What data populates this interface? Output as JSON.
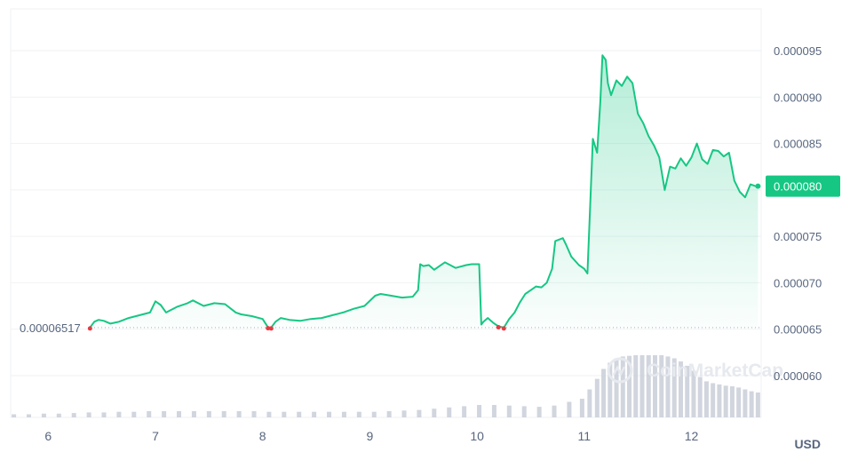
{
  "chart_data": {
    "type": "line",
    "currency": "USD",
    "accent_color": "#16c784",
    "down_color": "#ea3943",
    "volume_color": "#c5cad6",
    "watermark": "CoinMarketCap",
    "baseline_label": "0.00006517",
    "baseline_value": 6.517e-05,
    "current_label": "0.000080",
    "current_value": 8.04e-05,
    "ylim": [
      5.55e-05,
      9.95e-05
    ],
    "y_ticks": [
      "0.000095",
      "0.000090",
      "0.000085",
      "0.000080",
      "0.000075",
      "0.000070",
      "0.000065",
      "0.000060"
    ],
    "y_tick_values": [
      9.5e-05,
      9e-05,
      8.5e-05,
      8e-05,
      7.5e-05,
      7e-05,
      6.5e-05,
      6e-05
    ],
    "x_ticks": [
      "6",
      "7",
      "8",
      "9",
      "10",
      "11",
      "12"
    ],
    "x_tick_values": [
      6,
      7,
      8,
      9,
      10,
      11,
      12
    ],
    "xlim": [
      5.65,
      12.65
    ],
    "grid": true,
    "series": [
      {
        "type": "line",
        "x": [
          6.39,
          6.43,
          6.47,
          6.52,
          6.58,
          6.66,
          6.75,
          6.85,
          6.95,
          7.0,
          7.05,
          7.1,
          7.2,
          7.3,
          7.35,
          7.45,
          7.55,
          7.65,
          7.75,
          7.8,
          7.9,
          8.0,
          8.05,
          8.08,
          8.12,
          8.17,
          8.25,
          8.35,
          8.45,
          8.55,
          8.65,
          8.75,
          8.85,
          8.95,
          9.05,
          9.1,
          9.2,
          9.3,
          9.4,
          9.45,
          9.47,
          9.5,
          9.55,
          9.6,
          9.65,
          9.7,
          9.8,
          9.9,
          9.95,
          10.02,
          10.04,
          10.06,
          10.1,
          10.15,
          10.2,
          10.25,
          10.3,
          10.35,
          10.4,
          10.45,
          10.5,
          10.55,
          10.6,
          10.65,
          10.7,
          10.73,
          10.8,
          10.83,
          10.88,
          10.95,
          11.0,
          11.03,
          11.08,
          11.12,
          11.15,
          11.17,
          11.2,
          11.22,
          11.25,
          11.3,
          11.35,
          11.4,
          11.45,
          11.5,
          11.55,
          11.6,
          11.65,
          11.7,
          11.75,
          11.8,
          11.85,
          11.9,
          11.95,
          12.0,
          12.05,
          12.1,
          12.15,
          12.2,
          12.25,
          12.3,
          12.35,
          12.4,
          12.45,
          12.5,
          12.55,
          12.6,
          12.62
        ],
        "values": [
          6.517e-05,
          6.58e-05,
          6.6e-05,
          6.59e-05,
          6.56e-05,
          6.58e-05,
          6.62e-05,
          6.65e-05,
          6.68e-05,
          6.8e-05,
          6.76e-05,
          6.68e-05,
          6.74e-05,
          6.78e-05,
          6.81e-05,
          6.75e-05,
          6.78e-05,
          6.77e-05,
          6.68e-05,
          6.66e-05,
          6.64e-05,
          6.61e-05,
          6.52e-05,
          6.517e-05,
          6.58e-05,
          6.62e-05,
          6.6e-05,
          6.59e-05,
          6.61e-05,
          6.62e-05,
          6.65e-05,
          6.68e-05,
          6.72e-05,
          6.75e-05,
          6.86e-05,
          6.88e-05,
          6.86e-05,
          6.84e-05,
          6.85e-05,
          6.92e-05,
          7.2e-05,
          7.18e-05,
          7.19e-05,
          7.14e-05,
          7.18e-05,
          7.22e-05,
          7.16e-05,
          7.19e-05,
          7.2e-05,
          7.2e-05,
          6.55e-05,
          6.58e-05,
          6.62e-05,
          6.57e-05,
          6.53e-05,
          6.517e-05,
          6.61e-05,
          6.68e-05,
          6.79e-05,
          6.88e-05,
          6.92e-05,
          6.96e-05,
          6.95e-05,
          7e-05,
          7.15e-05,
          7.45e-05,
          7.48e-05,
          7.41e-05,
          7.28e-05,
          7.19e-05,
          7.15e-05,
          7.1e-05,
          8.55e-05,
          8.4e-05,
          8.95e-05,
          9.45e-05,
          9.4e-05,
          9.15e-05,
          9.02e-05,
          9.18e-05,
          9.12e-05,
          9.22e-05,
          9.15e-05,
          8.82e-05,
          8.72e-05,
          8.58e-05,
          8.48e-05,
          8.35e-05,
          8e-05,
          8.25e-05,
          8.23e-05,
          8.34e-05,
          8.26e-05,
          8.35e-05,
          8.5e-05,
          8.33e-05,
          8.28e-05,
          8.43e-05,
          8.42e-05,
          8.36e-05,
          8.4e-05,
          8.1e-05,
          7.98e-05,
          7.92e-05,
          8.06e-05,
          8.04e-05,
          8.04e-05
        ]
      },
      {
        "type": "bar",
        "x": [
          5.68,
          5.82,
          5.96,
          6.1,
          6.24,
          6.38,
          6.52,
          6.66,
          6.8,
          6.94,
          7.08,
          7.22,
          7.36,
          7.5,
          7.64,
          7.78,
          7.92,
          8.06,
          8.2,
          8.34,
          8.48,
          8.62,
          8.76,
          8.9,
          9.04,
          9.18,
          9.32,
          9.46,
          9.6,
          9.74,
          9.88,
          10.02,
          10.16,
          10.3,
          10.44,
          10.58,
          10.72,
          10.86,
          10.98,
          11.05,
          11.12,
          11.18,
          11.24,
          11.3,
          11.36,
          11.42,
          11.48,
          11.54,
          11.6,
          11.66,
          11.72,
          11.78,
          11.84,
          11.9,
          11.96,
          12.02,
          12.08,
          12.14,
          12.2,
          12.26,
          12.32,
          12.38,
          12.44,
          12.5,
          12.56,
          12.62
        ],
        "values": [
          0.05,
          0.05,
          0.06,
          0.06,
          0.07,
          0.08,
          0.08,
          0.09,
          0.09,
          0.1,
          0.1,
          0.1,
          0.1,
          0.1,
          0.1,
          0.1,
          0.1,
          0.09,
          0.09,
          0.09,
          0.09,
          0.09,
          0.09,
          0.09,
          0.09,
          0.1,
          0.11,
          0.12,
          0.14,
          0.16,
          0.18,
          0.2,
          0.2,
          0.19,
          0.18,
          0.17,
          0.19,
          0.25,
          0.3,
          0.45,
          0.62,
          0.78,
          0.88,
          0.95,
          0.98,
          0.99,
          1.0,
          1.0,
          1.0,
          1.0,
          1.0,
          0.98,
          0.95,
          0.9,
          0.83,
          0.75,
          0.65,
          0.58,
          0.55,
          0.53,
          0.51,
          0.5,
          0.48,
          0.45,
          0.42,
          0.4
        ]
      }
    ]
  }
}
